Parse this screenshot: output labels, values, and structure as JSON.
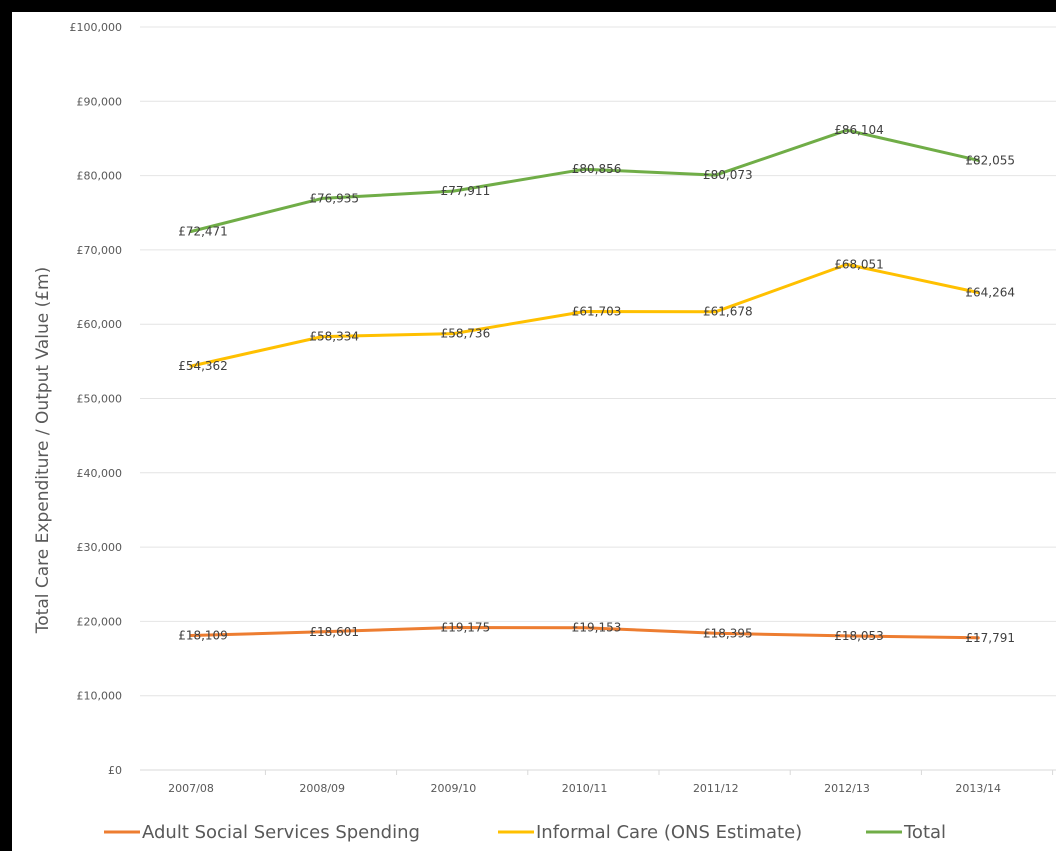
{
  "chart_data": {
    "type": "line",
    "title": "",
    "xlabel": "",
    "ylabel": "Total Care Expenditure / Output Value (£m)",
    "categories": [
      "2007/08",
      "2008/09",
      "2009/10",
      "2010/11",
      "2011/12",
      "2012/13",
      "2013/14"
    ],
    "ylim": [
      0,
      100000
    ],
    "yticks": [
      {
        "value": 0,
        "label": "£0"
      },
      {
        "value": 10000,
        "label": "£10,000"
      },
      {
        "value": 20000,
        "label": "£20,000"
      },
      {
        "value": 30000,
        "label": "£30,000"
      },
      {
        "value": 40000,
        "label": "£40,000"
      },
      {
        "value": 50000,
        "label": "£50,000"
      },
      {
        "value": 60000,
        "label": "£60,000"
      },
      {
        "value": 70000,
        "label": "£70,000"
      },
      {
        "value": 80000,
        "label": "£80,000"
      },
      {
        "value": 90000,
        "label": "£90,000"
      },
      {
        "value": 100000,
        "label": "£100,000"
      }
    ],
    "grid": true,
    "legend_position": "bottom",
    "series": [
      {
        "name": "Adult Social Services Spending",
        "color": "#ED7D31",
        "values": [
          18109,
          18601,
          19175,
          19153,
          18395,
          18053,
          17791
        ],
        "labels": [
          "£18,109",
          "£18,601",
          "£19,175",
          "£19,153",
          "£18,395",
          "£18,053",
          "£17,791"
        ]
      },
      {
        "name": "Informal Care (ONS Estimate)",
        "color": "#FFC000",
        "values": [
          54362,
          58334,
          58736,
          61703,
          61678,
          68051,
          64264
        ],
        "labels": [
          "£54,362",
          "£58,334",
          "£58,736",
          "£61,703",
          "£61,678",
          "£68,051",
          "£64,264"
        ]
      },
      {
        "name": "Total",
        "color": "#70AD47",
        "values": [
          72471,
          76935,
          77911,
          80856,
          80073,
          86104,
          82055
        ],
        "labels": [
          "£72,471",
          "£76,935",
          "£77,911",
          "£80,856",
          "£80,073",
          "£86,104",
          "£82,055"
        ]
      }
    ]
  }
}
